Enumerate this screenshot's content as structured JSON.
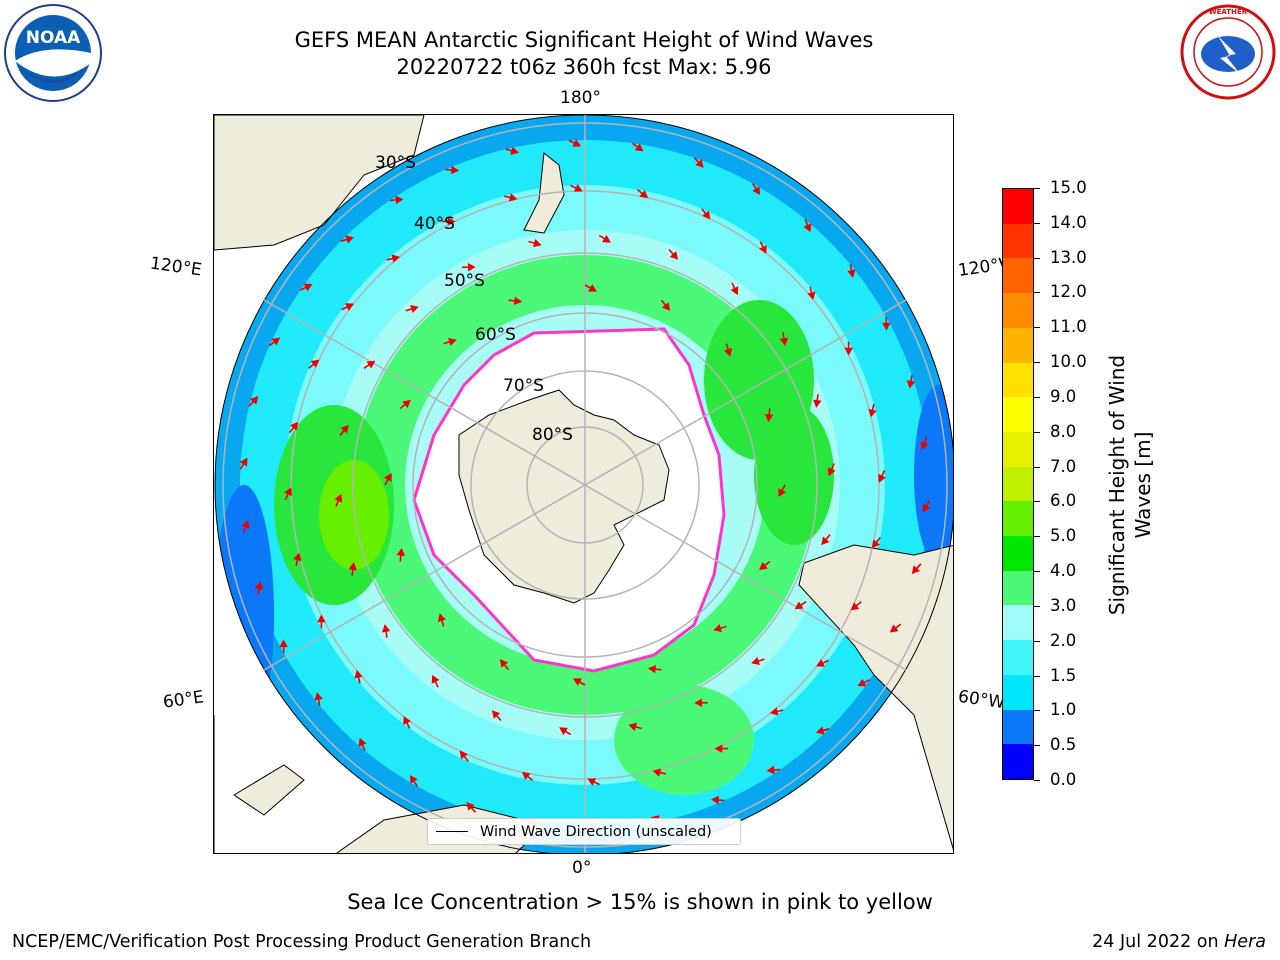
{
  "title": {
    "line1": "GEFS MEAN Antarctic Significant Height of Wind Waves",
    "line2": "20220722 t06z 360h fcst   Max: 5.96"
  },
  "map": {
    "projection": "south polar stereographic",
    "longitude_labels": [
      "180°",
      "120°E",
      "120°W",
      "60°E",
      "60°W",
      "0°"
    ],
    "latitude_labels": [
      "30°S",
      "40°S",
      "50°S",
      "60°S",
      "70°S",
      "80°S"
    ],
    "colors": {
      "land": "#efecdc",
      "ice": "#ffffff",
      "ice_edge": "#ff33cc",
      "grid": "#b4b4b4",
      "arrow": "#ee0000"
    }
  },
  "legend": {
    "label": "Wind Wave Direction (unscaled)"
  },
  "colorbar": {
    "label": "Significant Height of Wind Waves [m]",
    "ticks": [
      "0.0",
      "0.5",
      "1.0",
      "1.5",
      "2.0",
      "3.0",
      "4.0",
      "5.0",
      "6.0",
      "7.0",
      "8.0",
      "9.0",
      "10.0",
      "11.0",
      "12.0",
      "13.0",
      "14.0",
      "15.0"
    ],
    "colors": [
      "#0000ff",
      "#0a78f8",
      "#00e6ff",
      "#40f6f6",
      "#a0fcf6",
      "#4cf878",
      "#00e600",
      "#66f000",
      "#bef000",
      "#e6f000",
      "#ffff00",
      "#ffe000",
      "#ffb400",
      "#ff8c00",
      "#ff6400",
      "#ff3200",
      "#ff0000"
    ]
  },
  "footnote": "Sea Ice Concentration > 15% is shown in pink to yellow",
  "credit": "NCEP/EMC/Verification Post Processing Product Generation Branch",
  "date": {
    "text": "24 Jul 2022 on ",
    "machine": "Hera"
  },
  "logos": {
    "noaa": "NOAA",
    "nws": "NATIONAL WEATHER SERVICE"
  }
}
